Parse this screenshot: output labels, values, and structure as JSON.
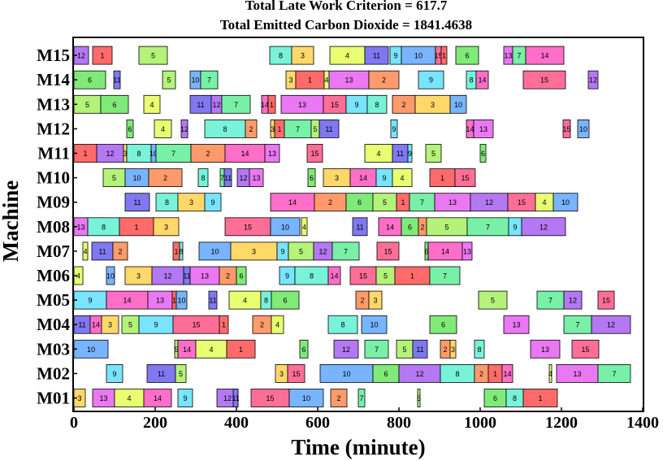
{
  "chart_data": {
    "type": "gantt",
    "title_lines": [
      "Total Late Work Criterion = 617.7",
      "Total Emitted Carbon Dioxide = 1841.4638"
    ],
    "xlabel": "Time (minute)",
    "ylabel": "Machine",
    "xlim": [
      0,
      1400
    ],
    "xticks": [
      "0",
      "200",
      "400",
      "600",
      "800",
      "1000",
      "1200",
      "1400"
    ],
    "machines": [
      "M01",
      "M02",
      "M03",
      "M04",
      "M05",
      "M06",
      "M07",
      "M08",
      "M09",
      "M10",
      "M11",
      "M12",
      "M13",
      "M14",
      "M15"
    ],
    "job_colors": {
      "1": "#ff6b6b",
      "2": "#ff9b6a",
      "3": "#ffd86a",
      "4": "#e8ff72",
      "5": "#b4f27a",
      "6": "#7fea78",
      "7": "#78f0a8",
      "8": "#78f2d8",
      "9": "#78e4ff",
      "10": "#78b4ff",
      "11": "#7f78f0",
      "12": "#b478f2",
      "13": "#ea78f2",
      "14": "#ff6ec8",
      "15": "#ff6e96"
    },
    "operations": {
      "M01": [
        [
          0,
          28,
          "3"
        ],
        [
          46,
          100,
          "13"
        ],
        [
          100,
          172,
          "4"
        ],
        [
          172,
          240,
          "14"
        ],
        [
          256,
          292,
          "9"
        ],
        [
          352,
          404,
          "12"
        ],
        [
          392,
          404,
          "11"
        ],
        [
          436,
          530,
          "15"
        ],
        [
          530,
          614,
          "10"
        ],
        [
          632,
          672,
          "2"
        ],
        [
          700,
          716,
          "7"
        ],
        [
          846,
          852,
          "5"
        ],
        [
          1010,
          1064,
          "6"
        ],
        [
          1064,
          1106,
          "8"
        ],
        [
          1106,
          1190,
          "1"
        ]
      ],
      "M02": [
        [
          80,
          120,
          "9"
        ],
        [
          180,
          250,
          "11"
        ],
        [
          250,
          276,
          "5"
        ],
        [
          496,
          526,
          "3"
        ],
        [
          526,
          568,
          "15"
        ],
        [
          606,
          736,
          "10"
        ],
        [
          736,
          800,
          "6"
        ],
        [
          800,
          902,
          "12"
        ],
        [
          902,
          986,
          "8"
        ],
        [
          986,
          1020,
          "2"
        ],
        [
          1020,
          1054,
          "1"
        ],
        [
          1054,
          1080,
          "14"
        ],
        [
          1170,
          1176,
          "4"
        ],
        [
          1188,
          1290,
          "13"
        ],
        [
          1290,
          1370,
          "7"
        ]
      ],
      "M03": [
        [
          0,
          84,
          "10"
        ],
        [
          248,
          256,
          "5"
        ],
        [
          256,
          300,
          "14"
        ],
        [
          300,
          376,
          "4"
        ],
        [
          376,
          446,
          "1"
        ],
        [
          556,
          576,
          "6"
        ],
        [
          640,
          700,
          "12"
        ],
        [
          716,
          774,
          "7"
        ],
        [
          794,
          834,
          "5"
        ],
        [
          834,
          870,
          "11"
        ],
        [
          902,
          926,
          "2"
        ],
        [
          926,
          940,
          "3"
        ],
        [
          986,
          1010,
          "8"
        ],
        [
          1124,
          1196,
          "13"
        ],
        [
          1226,
          1292,
          "15"
        ]
      ],
      "M04": [
        [
          0,
          40,
          "11"
        ],
        [
          40,
          68,
          "14"
        ],
        [
          68,
          110,
          "3"
        ],
        [
          118,
          160,
          "5"
        ],
        [
          160,
          244,
          "9"
        ],
        [
          244,
          358,
          "15"
        ],
        [
          358,
          380,
          "1"
        ],
        [
          440,
          486,
          "2"
        ],
        [
          486,
          516,
          "4"
        ],
        [
          626,
          698,
          "8"
        ],
        [
          708,
          770,
          "10"
        ],
        [
          876,
          942,
          "6"
        ],
        [
          1058,
          1120,
          "13"
        ],
        [
          1206,
          1274,
          "7"
        ],
        [
          1274,
          1370,
          "12"
        ]
      ],
      "M05": [
        [
          0,
          80,
          "9"
        ],
        [
          80,
          182,
          "14"
        ],
        [
          182,
          242,
          "13"
        ],
        [
          242,
          252,
          "1"
        ],
        [
          252,
          278,
          "10"
        ],
        [
          332,
          352,
          "11"
        ],
        [
          382,
          460,
          "4"
        ],
        [
          460,
          486,
          "8"
        ],
        [
          486,
          554,
          "6"
        ],
        [
          694,
          726,
          "2"
        ],
        [
          726,
          758,
          "3"
        ],
        [
          996,
          1066,
          "5"
        ],
        [
          1140,
          1206,
          "7"
        ],
        [
          1206,
          1250,
          "12"
        ],
        [
          1290,
          1330,
          "15"
        ]
      ],
      "M06": [
        [
          0,
          22,
          "4"
        ],
        [
          80,
          100,
          "10"
        ],
        [
          126,
          192,
          "3"
        ],
        [
          192,
          270,
          "12"
        ],
        [
          270,
          286,
          "11"
        ],
        [
          286,
          358,
          "13"
        ],
        [
          358,
          400,
          "2"
        ],
        [
          400,
          424,
          "6"
        ],
        [
          506,
          544,
          "9"
        ],
        [
          544,
          626,
          "8"
        ],
        [
          626,
          656,
          "14"
        ],
        [
          680,
          744,
          "15"
        ],
        [
          744,
          790,
          "5"
        ],
        [
          790,
          876,
          "1"
        ],
        [
          876,
          950,
          "7"
        ]
      ],
      "M07": [
        [
          22,
          34,
          "4"
        ],
        [
          44,
          96,
          "11"
        ],
        [
          96,
          132,
          "2"
        ],
        [
          244,
          260,
          "1"
        ],
        [
          260,
          268,
          "8"
        ],
        [
          308,
          386,
          "10"
        ],
        [
          386,
          500,
          "3"
        ],
        [
          500,
          528,
          "9"
        ],
        [
          528,
          590,
          "5"
        ],
        [
          590,
          636,
          "12"
        ],
        [
          636,
          702,
          "7"
        ],
        [
          746,
          800,
          "15"
        ],
        [
          864,
          872,
          "6"
        ],
        [
          872,
          956,
          "14"
        ],
        [
          956,
          980,
          "13"
        ]
      ],
      "M08": [
        [
          0,
          34,
          "13"
        ],
        [
          34,
          112,
          "8"
        ],
        [
          112,
          196,
          "1"
        ],
        [
          196,
          258,
          "3"
        ],
        [
          372,
          484,
          "15"
        ],
        [
          484,
          556,
          "10"
        ],
        [
          560,
          574,
          "4"
        ],
        [
          686,
          722,
          "11"
        ],
        [
          750,
          806,
          "14"
        ],
        [
          806,
          848,
          "6"
        ],
        [
          848,
          868,
          "2"
        ],
        [
          868,
          968,
          "5"
        ],
        [
          968,
          1070,
          "7"
        ],
        [
          1070,
          1102,
          "9"
        ],
        [
          1102,
          1210,
          "12"
        ]
      ],
      "M09": [
        [
          126,
          186,
          "11"
        ],
        [
          202,
          256,
          "8"
        ],
        [
          256,
          322,
          "3"
        ],
        [
          322,
          362,
          "9"
        ],
        [
          484,
          592,
          "14"
        ],
        [
          592,
          670,
          "2"
        ],
        [
          670,
          736,
          "6"
        ],
        [
          736,
          794,
          "5"
        ],
        [
          794,
          826,
          "1"
        ],
        [
          826,
          888,
          "7"
        ],
        [
          888,
          976,
          "13"
        ],
        [
          976,
          1068,
          "12"
        ],
        [
          1068,
          1136,
          "15"
        ],
        [
          1136,
          1180,
          "4"
        ],
        [
          1180,
          1240,
          "10"
        ]
      ],
      "M10": [
        [
          72,
          126,
          "5"
        ],
        [
          126,
          184,
          "10"
        ],
        [
          184,
          266,
          "2"
        ],
        [
          306,
          330,
          "8"
        ],
        [
          360,
          370,
          "7"
        ],
        [
          370,
          388,
          "11"
        ],
        [
          402,
          432,
          "12"
        ],
        [
          432,
          466,
          "13"
        ],
        [
          576,
          594,
          "6"
        ],
        [
          614,
          680,
          "3"
        ],
        [
          680,
          744,
          "14"
        ],
        [
          744,
          784,
          "9"
        ],
        [
          784,
          832,
          "4"
        ],
        [
          876,
          938,
          "1"
        ],
        [
          938,
          988,
          "15"
        ]
      ],
      "M11": [
        [
          0,
          56,
          "1"
        ],
        [
          56,
          122,
          "12"
        ],
        [
          122,
          130,
          "3"
        ],
        [
          130,
          190,
          "8"
        ],
        [
          190,
          202,
          "10"
        ],
        [
          202,
          288,
          "7"
        ],
        [
          288,
          372,
          "2"
        ],
        [
          372,
          470,
          "14"
        ],
        [
          470,
          506,
          "13"
        ],
        [
          574,
          612,
          "15"
        ],
        [
          716,
          784,
          "4"
        ],
        [
          784,
          822,
          "11"
        ],
        [
          822,
          832,
          "9"
        ],
        [
          866,
          904,
          "5"
        ],
        [
          1000,
          1014,
          "6"
        ]
      ],
      "M12": [
        [
          130,
          146,
          "6"
        ],
        [
          198,
          240,
          "4"
        ],
        [
          264,
          280,
          "12"
        ],
        [
          322,
          422,
          "8"
        ],
        [
          422,
          450,
          "2"
        ],
        [
          484,
          494,
          "3"
        ],
        [
          494,
          518,
          "1"
        ],
        [
          518,
          584,
          "7"
        ],
        [
          584,
          604,
          "5"
        ],
        [
          604,
          652,
          "11"
        ],
        [
          780,
          796,
          "9"
        ],
        [
          966,
          984,
          "14"
        ],
        [
          984,
          1032,
          "13"
        ],
        [
          1204,
          1222,
          "15"
        ],
        [
          1240,
          1268,
          "10"
        ]
      ],
      "M13": [
        [
          0,
          66,
          "5"
        ],
        [
          66,
          134,
          "6"
        ],
        [
          172,
          212,
          "4"
        ],
        [
          286,
          338,
          "11"
        ],
        [
          338,
          364,
          "12"
        ],
        [
          364,
          434,
          "7"
        ],
        [
          462,
          478,
          "14"
        ],
        [
          478,
          496,
          "1"
        ],
        [
          510,
          614,
          "13"
        ],
        [
          614,
          670,
          "15"
        ],
        [
          670,
          722,
          "9"
        ],
        [
          722,
          770,
          "8"
        ],
        [
          784,
          840,
          "2"
        ],
        [
          840,
          926,
          "3"
        ],
        [
          926,
          966,
          "10"
        ]
      ],
      "M14": [
        [
          0,
          78,
          "6"
        ],
        [
          98,
          114,
          "11"
        ],
        [
          218,
          250,
          "5"
        ],
        [
          286,
          312,
          "10"
        ],
        [
          312,
          354,
          "7"
        ],
        [
          522,
          546,
          "3"
        ],
        [
          546,
          616,
          "1"
        ],
        [
          616,
          628,
          "4"
        ],
        [
          628,
          726,
          "13"
        ],
        [
          726,
          800,
          "2"
        ],
        [
          848,
          910,
          "9"
        ],
        [
          966,
          990,
          "8"
        ],
        [
          990,
          1020,
          "14"
        ],
        [
          1106,
          1210,
          "15"
        ],
        [
          1266,
          1290,
          "12"
        ]
      ],
      "M15": [
        [
          0,
          36,
          "12"
        ],
        [
          46,
          94,
          "1"
        ],
        [
          160,
          230,
          "5"
        ],
        [
          482,
          536,
          "8"
        ],
        [
          536,
          590,
          "3"
        ],
        [
          630,
          716,
          "4"
        ],
        [
          716,
          774,
          "11"
        ],
        [
          778,
          806,
          "9"
        ],
        [
          806,
          890,
          "10"
        ],
        [
          890,
          904,
          "15"
        ],
        [
          904,
          918,
          "1"
        ],
        [
          940,
          996,
          "6"
        ],
        [
          1058,
          1080,
          "13"
        ],
        [
          1080,
          1112,
          "7"
        ],
        [
          1112,
          1206,
          "14"
        ]
      ]
    }
  }
}
